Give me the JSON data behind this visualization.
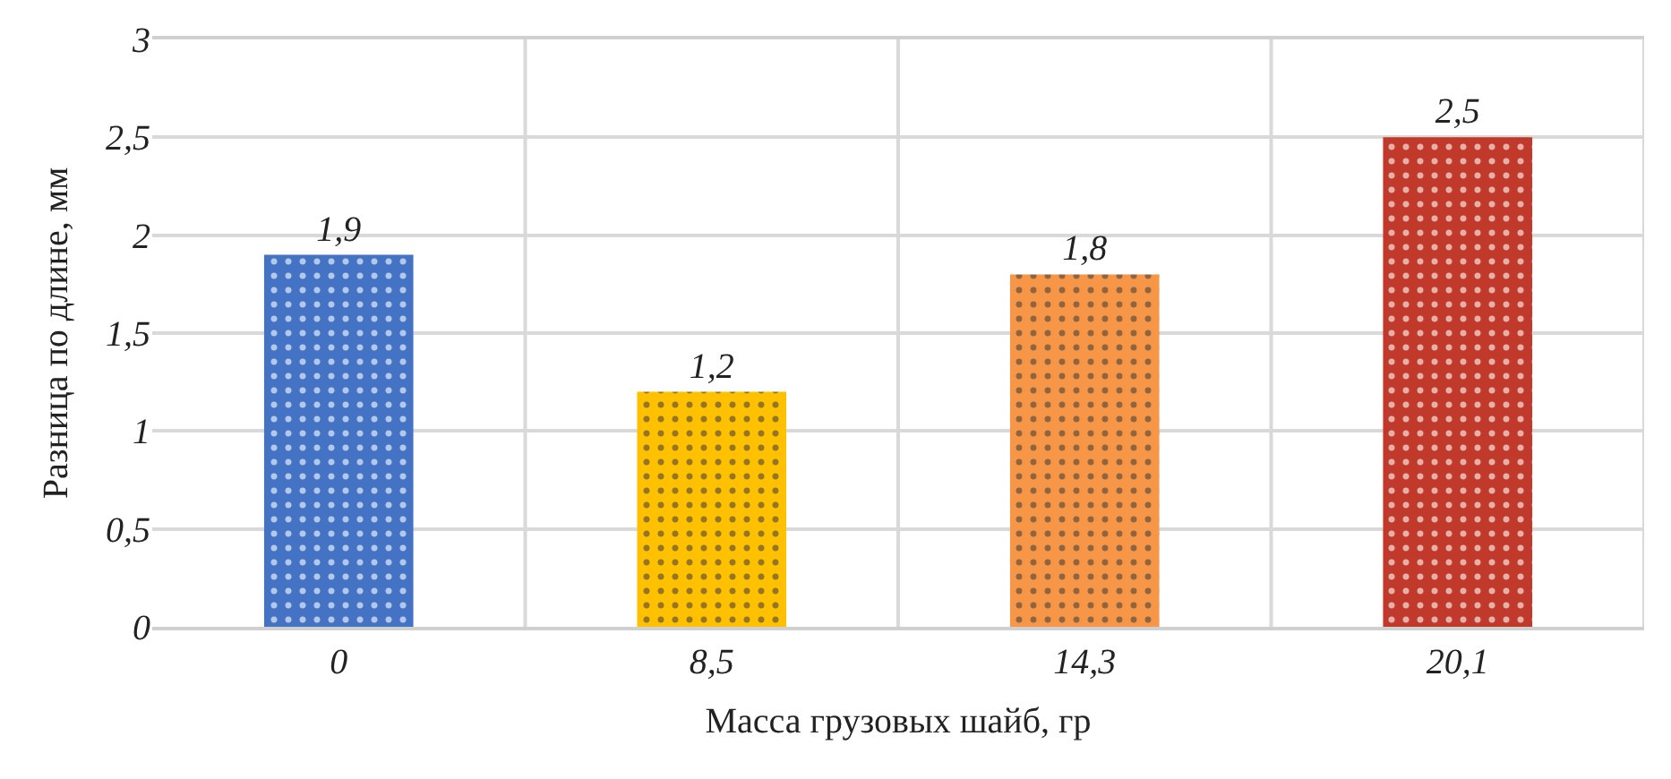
{
  "chart_data": {
    "type": "bar",
    "xlabel": "Масса грузовых шайб, гр",
    "ylabel": "Разница по длине, мм",
    "categories": [
      "0",
      "8,5",
      "14,3",
      "20,1"
    ],
    "values": [
      1.9,
      1.2,
      1.8,
      2.5
    ],
    "value_labels": [
      "1,9",
      "1,2",
      "1,8",
      "2,5"
    ],
    "colors": [
      "#4472c4",
      "#ffc000",
      "#f79646",
      "#c0392b"
    ],
    "ylim": [
      0,
      3
    ],
    "yticks": [
      0,
      {
        "value": 0.5,
        "label": "0,5"
      },
      1,
      {
        "value": 1.5,
        "label": "1,5"
      },
      2,
      {
        "value": 2.5,
        "label": "2,5"
      },
      3
    ],
    "grid": true
  }
}
